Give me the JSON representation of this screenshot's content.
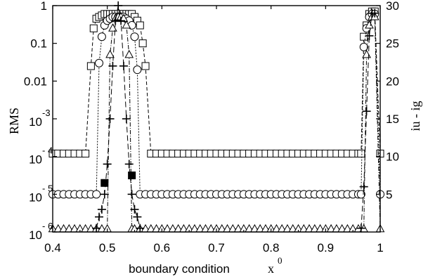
{
  "chart_data": {
    "type": "scatter",
    "xlabel": "boundary condition",
    "xlabel_symbol": "x",
    "xlabel_symbol_sup": "0",
    "ylabel_left": "RMS",
    "ylabel_right": "iu - ig",
    "xlim": [
      0.4,
      1.0
    ],
    "ylim_left": [
      1e-06,
      1
    ],
    "yscale_left": "log",
    "ylim_right": [
      0,
      30
    ],
    "grid": false,
    "x_ticks": [
      {
        "value": 0.4,
        "label": "0.4"
      },
      {
        "value": 0.5,
        "label": "0.5"
      },
      {
        "value": 0.6,
        "label": "0.6"
      },
      {
        "value": 0.7,
        "label": "0.7"
      },
      {
        "value": 0.8,
        "label": "0.8"
      },
      {
        "value": 0.9,
        "label": "0.9"
      },
      {
        "value": 1.0,
        "label": "1"
      }
    ],
    "y_left_ticks": [
      {
        "value": 1,
        "label": "1"
      },
      {
        "value": 0.1,
        "label": "0.1"
      },
      {
        "value": 0.01,
        "label": "0.01"
      },
      {
        "value": 0.001,
        "base": "10",
        "exp": "-3"
      },
      {
        "value": 0.0001,
        "base": "10",
        "exp": "- 4"
      },
      {
        "value": 1e-05,
        "base": "10",
        "exp": "- 5"
      },
      {
        "value": 1e-06,
        "base": "10",
        "exp": "- 6"
      }
    ],
    "y_right_ticks": [
      {
        "value": 5,
        "label": "5"
      },
      {
        "value": 10,
        "label": "10"
      },
      {
        "value": 15,
        "label": "15"
      },
      {
        "value": 20,
        "label": "20"
      },
      {
        "value": 25,
        "label": "25"
      },
      {
        "value": 30,
        "label": "30"
      }
    ],
    "series": [
      {
        "marker": "square",
        "dash": "5,3",
        "axis": "left",
        "x": [
          0.4,
          0.41,
          0.42,
          0.43,
          0.44,
          0.45,
          0.46,
          0.47,
          0.475,
          0.48,
          0.485,
          0.49,
          0.495,
          0.5,
          0.505,
          0.51,
          0.515,
          0.52,
          0.525,
          0.53,
          0.535,
          0.54,
          0.545,
          0.55,
          0.555,
          0.56,
          0.565,
          0.57,
          0.58,
          0.59,
          0.6,
          0.61,
          0.62,
          0.63,
          0.64,
          0.65,
          0.66,
          0.67,
          0.68,
          0.69,
          0.7,
          0.71,
          0.72,
          0.73,
          0.74,
          0.75,
          0.76,
          0.77,
          0.78,
          0.79,
          0.8,
          0.81,
          0.82,
          0.83,
          0.84,
          0.85,
          0.86,
          0.87,
          0.88,
          0.89,
          0.9,
          0.91,
          0.92,
          0.93,
          0.94,
          0.95,
          0.96,
          0.965,
          0.97,
          0.975,
          0.98,
          0.985,
          0.99,
          1.0
        ],
        "y": [
          0.00012,
          0.00012,
          0.00012,
          0.00012,
          0.00012,
          0.00012,
          0.00012,
          0.025,
          0.25,
          0.45,
          0.5,
          0.55,
          0.6,
          0.6,
          0.6,
          0.6,
          0.6,
          0.6,
          0.6,
          0.6,
          0.6,
          0.6,
          0.6,
          0.5,
          0.4,
          0.3,
          0.1,
          0.025,
          0.00012,
          0.00012,
          0.00012,
          0.00012,
          0.00012,
          0.00012,
          0.00012,
          0.00012,
          0.00012,
          0.00012,
          0.00012,
          0.00012,
          0.00012,
          0.00012,
          0.00012,
          0.00012,
          0.00012,
          0.00012,
          0.00012,
          0.00012,
          0.00012,
          0.00012,
          0.00012,
          0.00012,
          0.00012,
          0.00012,
          0.00012,
          0.00012,
          0.00012,
          0.00012,
          0.00012,
          0.00012,
          0.00012,
          0.00012,
          0.00012,
          0.00012,
          0.00012,
          0.00012,
          0.00012,
          0.00012,
          0.15,
          0.3,
          0.6,
          0.7,
          0.7,
          0.00012
        ]
      },
      {
        "marker": "circle",
        "dash": "2,2",
        "axis": "left",
        "x": [
          0.4,
          0.41,
          0.42,
          0.43,
          0.44,
          0.45,
          0.46,
          0.47,
          0.48,
          0.485,
          0.49,
          0.495,
          0.5,
          0.505,
          0.51,
          0.515,
          0.52,
          0.525,
          0.53,
          0.535,
          0.54,
          0.545,
          0.55,
          0.555,
          0.56,
          0.57,
          0.58,
          0.59,
          0.6,
          0.61,
          0.62,
          0.63,
          0.64,
          0.65,
          0.66,
          0.67,
          0.68,
          0.69,
          0.7,
          0.71,
          0.72,
          0.73,
          0.74,
          0.75,
          0.76,
          0.77,
          0.78,
          0.79,
          0.8,
          0.81,
          0.82,
          0.83,
          0.84,
          0.85,
          0.86,
          0.87,
          0.88,
          0.89,
          0.9,
          0.91,
          0.92,
          0.93,
          0.94,
          0.95,
          0.96,
          0.965,
          0.97,
          0.975,
          0.98,
          0.985,
          0.99,
          1.0
        ],
        "y": [
          1e-05,
          1e-05,
          1e-05,
          1e-05,
          1e-05,
          1e-05,
          1e-05,
          1e-05,
          1e-05,
          0.03,
          0.15,
          0.3,
          0.4,
          0.45,
          0.5,
          0.5,
          0.5,
          0.5,
          0.5,
          0.45,
          0.4,
          0.3,
          0.15,
          0.02,
          1e-05,
          1e-05,
          1e-05,
          1e-05,
          1e-05,
          1e-05,
          1e-05,
          1e-05,
          1e-05,
          1e-05,
          1e-05,
          1e-05,
          1e-05,
          1e-05,
          1e-05,
          1e-05,
          1e-05,
          1e-05,
          1e-05,
          1e-05,
          1e-05,
          1e-05,
          1e-05,
          1e-05,
          1e-05,
          1e-05,
          1e-05,
          1e-05,
          1e-05,
          1e-05,
          1e-05,
          1e-05,
          1e-05,
          1e-05,
          1e-05,
          1e-05,
          1e-05,
          1e-05,
          1e-05,
          1e-05,
          1e-05,
          1e-05,
          0.08,
          0.25,
          0.5,
          0.6,
          0.6,
          1e-05
        ]
      },
      {
        "marker": "triangle",
        "dash": "6,2,1,2",
        "axis": "left",
        "x": [
          0.4,
          0.41,
          0.42,
          0.43,
          0.44,
          0.45,
          0.46,
          0.47,
          0.48,
          0.49,
          0.5,
          0.505,
          0.51,
          0.515,
          0.52,
          0.525,
          0.53,
          0.535,
          0.54,
          0.545,
          0.55,
          0.56,
          0.57,
          0.58,
          0.59,
          0.6,
          0.61,
          0.62,
          0.63,
          0.64,
          0.65,
          0.66,
          0.67,
          0.68,
          0.69,
          0.7,
          0.71,
          0.72,
          0.73,
          0.74,
          0.75,
          0.76,
          0.77,
          0.78,
          0.79,
          0.8,
          0.81,
          0.82,
          0.83,
          0.84,
          0.85,
          0.86,
          0.87,
          0.88,
          0.89,
          0.9,
          0.91,
          0.92,
          0.93,
          0.94,
          0.95,
          0.96,
          0.97,
          0.975,
          0.98,
          0.985,
          0.99,
          1.0
        ],
        "y": [
          1.2e-06,
          1.2e-06,
          1.2e-06,
          1.2e-06,
          1.2e-06,
          1.2e-06,
          1.2e-06,
          1.2e-06,
          1.2e-06,
          1.2e-06,
          1.2e-06,
          0.05,
          0.25,
          0.45,
          0.5,
          0.5,
          0.45,
          0.3,
          0.05,
          1.2e-06,
          1.2e-06,
          1.2e-06,
          1.2e-06,
          1.2e-06,
          1.2e-06,
          1.2e-06,
          1.2e-06,
          1.2e-06,
          1.2e-06,
          1.2e-06,
          1.2e-06,
          1.2e-06,
          1.2e-06,
          1.2e-06,
          1.2e-06,
          1.2e-06,
          1.2e-06,
          1.2e-06,
          1.2e-06,
          1.2e-06,
          1.2e-06,
          1.2e-06,
          1.2e-06,
          1.2e-06,
          1.2e-06,
          1.2e-06,
          1.2e-06,
          1.2e-06,
          1.2e-06,
          1.2e-06,
          1.2e-06,
          1.2e-06,
          1.2e-06,
          1.2e-06,
          1.2e-06,
          1.2e-06,
          1.2e-06,
          1.2e-06,
          1.2e-06,
          1.2e-06,
          1.2e-06,
          1.2e-06,
          1.2e-06,
          0.05,
          0.3,
          0.5,
          0.5,
          1.2e-06
        ]
      },
      {
        "marker": "plus",
        "dash": "8,4",
        "axis": "right",
        "x": [
          0.48,
          0.485,
          0.49,
          0.495,
          0.5,
          0.505,
          0.51,
          0.515,
          0.52,
          0.525,
          0.53,
          0.535,
          0.54,
          0.545,
          0.55,
          0.555,
          0.56
        ],
        "y": [
          0.5,
          2,
          3,
          5,
          9,
          15,
          22,
          28,
          30,
          28,
          22,
          15,
          9,
          5,
          3,
          2,
          0.5
        ]
      },
      {
        "marker": "plus",
        "dash": "8,4",
        "axis": "right",
        "x": [
          0.965,
          0.97,
          0.975,
          0.98,
          0.985,
          0.99
        ],
        "y": [
          0.5,
          6,
          16,
          26,
          29,
          29
        ]
      },
      {
        "marker": "filled-square",
        "dash": "",
        "axis": "right",
        "x": [
          0.495,
          0.545
        ],
        "y": [
          6.5,
          7.5
        ]
      }
    ]
  }
}
